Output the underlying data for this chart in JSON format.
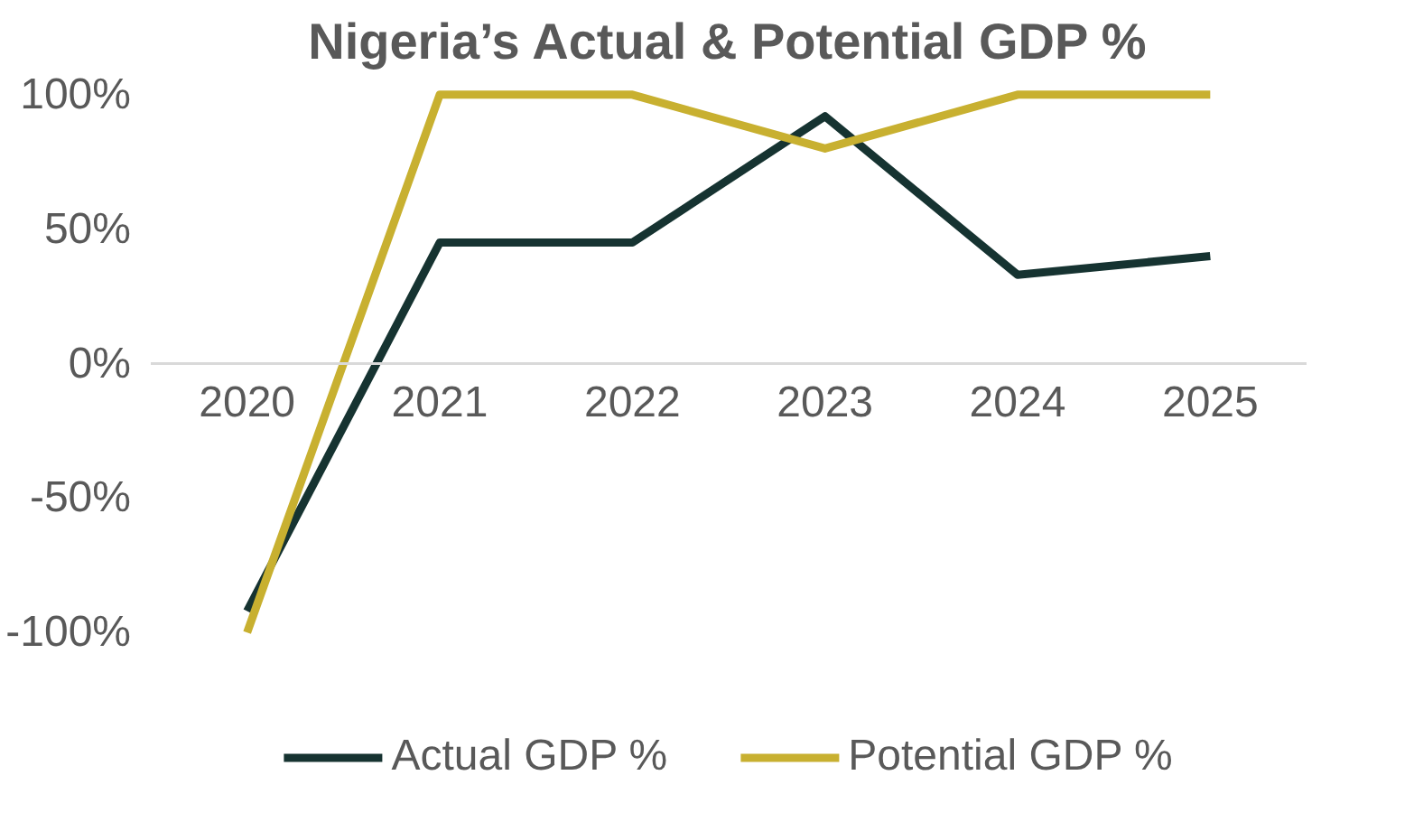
{
  "chart_data": {
    "type": "line",
    "title": "Nigeria’s Actual & Potential GDP %",
    "categories": [
      "2020",
      "2021",
      "2022",
      "2023",
      "2024",
      "2025"
    ],
    "series": [
      {
        "name": "Actual GDP %",
        "color": "#163331",
        "values": [
          -92,
          45,
          45,
          92,
          33,
          40
        ]
      },
      {
        "name": "Potential GDP %",
        "color": "#c8b030",
        "values": [
          -100,
          100,
          100,
          80,
          100,
          100
        ]
      }
    ],
    "ylim": [
      -100,
      100
    ],
    "yticks": [
      {
        "value": -100,
        "label": "-100%"
      },
      {
        "value": -50,
        "label": "-50%"
      },
      {
        "value": 0,
        "label": "0%"
      },
      {
        "value": 50,
        "label": "50%"
      },
      {
        "value": 100,
        "label": "100%"
      }
    ],
    "grid": false,
    "legend": "bottom",
    "marker": "none",
    "line_style": "solid"
  }
}
